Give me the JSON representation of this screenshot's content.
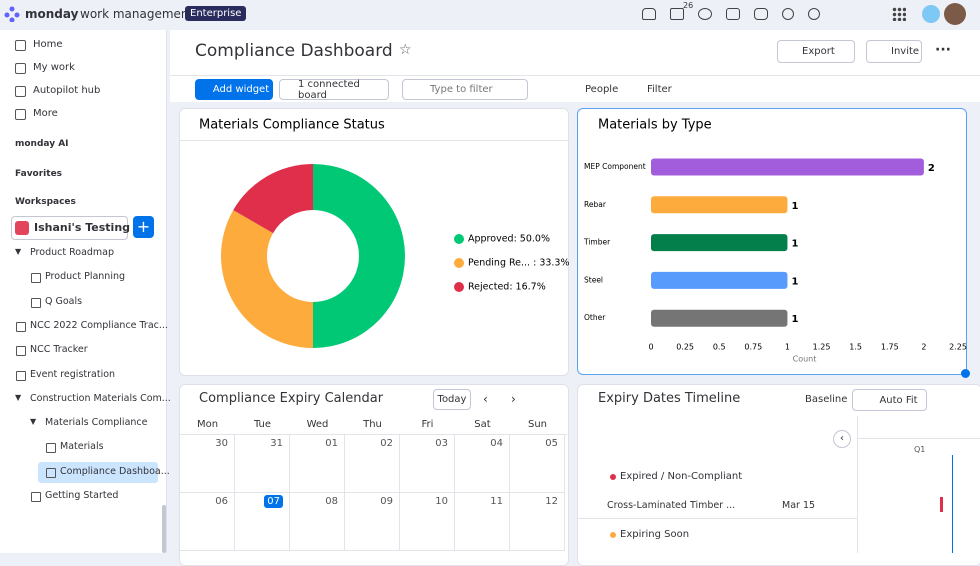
{
  "app": {
    "brand": "monday",
    "product": "work management",
    "plan": "Enterprise",
    "notification_count": "26"
  },
  "sidebar": {
    "nav": [
      "Home",
      "My work",
      "Autopilot hub",
      "More"
    ],
    "monday_ai": "monday AI",
    "favorites": "Favorites",
    "workspaces": "Workspaces",
    "workspace": "Ishani's Testing",
    "tree": [
      "Product Roadmap",
      "Product Planning",
      "Q Goals",
      "NCC 2022 Compliance Trac...",
      "NCC Tracker",
      "Event registration",
      "Construction Materials Com...",
      "Materials Compliance",
      "Materials",
      "Compliance Dashboa...",
      "Getting Started"
    ]
  },
  "dashboard": {
    "title": "Compliance Dashboard",
    "export": "Export",
    "invite": "Invite",
    "add_widget": "Add widget",
    "connected": "1 connected board",
    "filter_placeholder": "Type to filter",
    "people": "People",
    "filter": "Filter"
  },
  "chart_data": [
    {
      "type": "donut",
      "title": "Materials Compliance Status",
      "values": [
        50.0,
        33.3,
        16.7
      ],
      "value_labels": [
        "Approved: 50.0%",
        "Pending Re... : 33.3%",
        "Rejected: 16.7%"
      ],
      "colors": [
        "#00c875",
        "#fdab3d",
        "#df2f4a"
      ]
    },
    {
      "type": "hbar",
      "title": "Materials by Type",
      "categories": [
        "MEP Component",
        "Rebar",
        "Timber",
        "Steel",
        "Other"
      ],
      "values": [
        2,
        1,
        1,
        1,
        1
      ],
      "colors": [
        "#a25ddc",
        "#fdab3d",
        "#037f4c",
        "#579bfc",
        "#757575"
      ],
      "xlim": [
        0,
        2.25
      ],
      "xticks": [
        0,
        0.25,
        0.5,
        0.75,
        1,
        1.25,
        1.5,
        1.75,
        2,
        2.25
      ],
      "x_label": "Count"
    }
  ],
  "calendar": {
    "title": "Compliance Expiry Calendar",
    "today": "Today",
    "weekdays": [
      "Mon",
      "Tue",
      "Wed",
      "Thu",
      "Fri",
      "Sat",
      "Sun"
    ],
    "weeks": [
      [
        "30",
        "31",
        "01",
        "02",
        "03",
        "04",
        "05"
      ],
      [
        "06",
        "07",
        "08",
        "09",
        "10",
        "11",
        "12"
      ]
    ]
  },
  "timeline": {
    "title": "Expiry Dates Timeline",
    "baseline": "Baseline",
    "auto_fit": "Auto Fit",
    "quarter": "Q1",
    "groups": [
      {
        "name": "Expired / Non-Compliant",
        "items": [
          {
            "name": "Cross-Laminated Timber ...",
            "date": "Mar 15"
          }
        ]
      },
      {
        "name": "Expiring Soon"
      }
    ]
  }
}
